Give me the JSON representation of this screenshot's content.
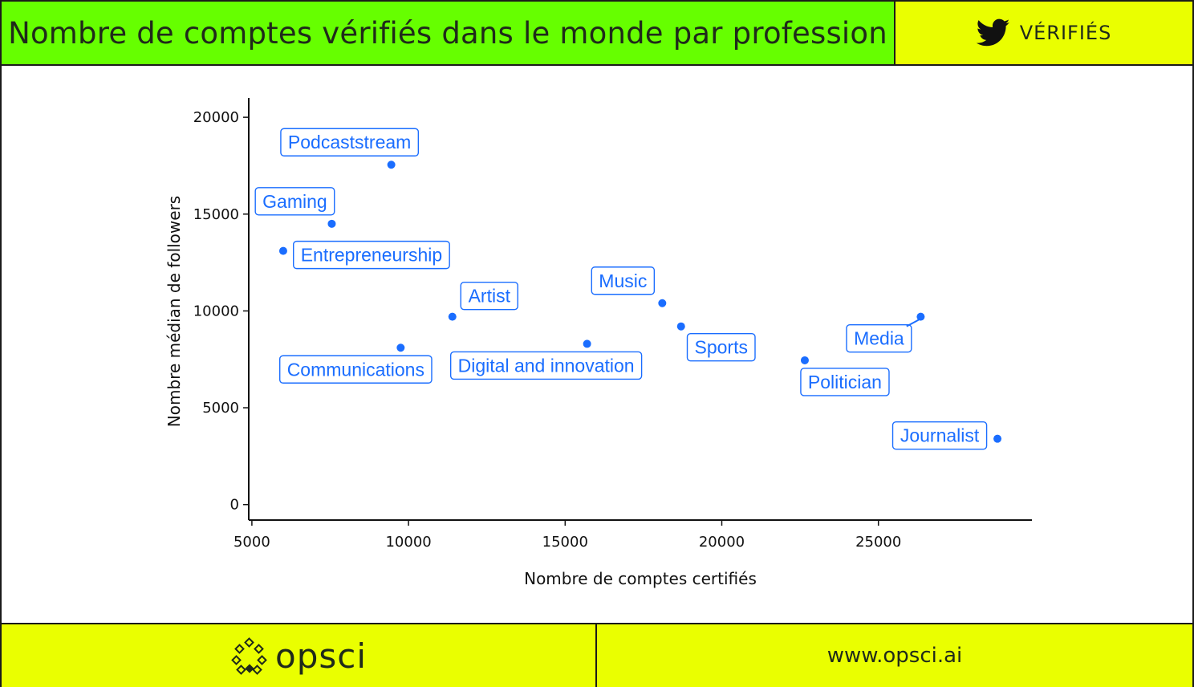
{
  "colors": {
    "title_bar": "#66ff00",
    "badge_bar": "#eaff00",
    "footer_bar": "#eaff00",
    "point": "#1a6dff",
    "label_text": "#1a6dff"
  },
  "header": {
    "title": "Nombre de comptes vérifiés dans le monde par profession",
    "badge_icon": "twitter-bird-icon",
    "badge_label": "VÉRIFIÉS"
  },
  "footer": {
    "logo_icon": "opsci-dots-icon",
    "logo_text": "opsci",
    "url": "www.opsci.ai"
  },
  "chart_data": {
    "type": "scatter",
    "xlabel": "Nombre de comptes certifiés",
    "ylabel": "Nombre médian de followers",
    "xlim": [
      4900,
      29900
    ],
    "ylim": [
      -800,
      21000
    ],
    "x_ticks": [
      5000,
      10000,
      15000,
      20000,
      25000
    ],
    "y_ticks": [
      0,
      5000,
      10000,
      15000,
      20000
    ],
    "grid": false,
    "points": [
      {
        "label": "Podcaststream",
        "x": 9450,
        "y": 17550
      },
      {
        "label": "Gaming",
        "x": 7550,
        "y": 14500
      },
      {
        "label": "Entrepreneurship",
        "x": 6000,
        "y": 13100
      },
      {
        "label": "Artist",
        "x": 11400,
        "y": 9700
      },
      {
        "label": "Communications",
        "x": 9750,
        "y": 8100
      },
      {
        "label": "Digital and innovation",
        "x": 15700,
        "y": 8300
      },
      {
        "label": "Music",
        "x": 18100,
        "y": 10400
      },
      {
        "label": "Sports",
        "x": 18700,
        "y": 9200
      },
      {
        "label": "Media",
        "x": 26350,
        "y": 9700
      },
      {
        "label": "Politician",
        "x": 22650,
        "y": 7450
      },
      {
        "label": "Journalist",
        "x": 28800,
        "y": 3400
      }
    ]
  }
}
